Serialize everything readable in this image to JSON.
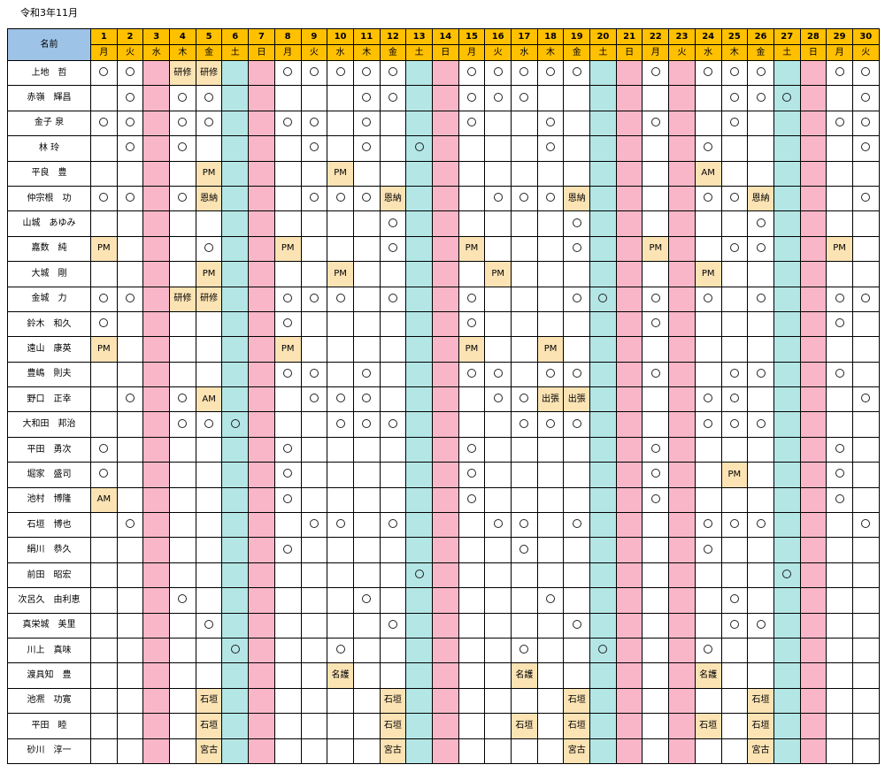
{
  "title": "令和3年11月",
  "header": {
    "name_label": "名前",
    "days": [
      "1",
      "2",
      "3",
      "4",
      "5",
      "6",
      "7",
      "8",
      "9",
      "10",
      "11",
      "12",
      "13",
      "14",
      "15",
      "16",
      "17",
      "18",
      "19",
      "20",
      "21",
      "22",
      "23",
      "24",
      "25",
      "26",
      "27",
      "28",
      "29",
      "30"
    ],
    "weekdays": [
      "月",
      "火",
      "水",
      "木",
      "金",
      "土",
      "日",
      "月",
      "火",
      "水",
      "木",
      "金",
      "土",
      "日",
      "月",
      "火",
      "水",
      "木",
      "金",
      "土",
      "日",
      "月",
      "火",
      "水",
      "木",
      "金",
      "土",
      "日",
      "月",
      "火"
    ]
  },
  "legend": {
    "circle_symbol": "○"
  },
  "colors": {
    "header": "#ffc000",
    "name_header": "#9dc3e6",
    "saturday": "#b4e6e6",
    "sunday_holiday": "#f8b6c8",
    "highlight": "#fbe3b4"
  },
  "column_types": [
    "",
    "",
    "off",
    "",
    "",
    "sat",
    "off",
    "",
    "",
    "",
    "",
    "",
    "sat",
    "off",
    "",
    "",
    "",
    "",
    "",
    "sat",
    "off",
    "",
    "off",
    "",
    "",
    "",
    "sat",
    "off",
    "",
    ""
  ],
  "rows": [
    {
      "name": "上地　哲",
      "cells": [
        "○",
        "○",
        "",
        "研修",
        "研修",
        "",
        "",
        "○",
        "○",
        "○",
        "○",
        "○",
        "",
        "",
        "○",
        "○",
        "○",
        "○",
        "○",
        "",
        "",
        "○",
        "",
        "○",
        "○",
        "○",
        "",
        "",
        "○",
        "○"
      ]
    },
    {
      "name": "赤嶺　輝昌",
      "cells": [
        "",
        "○",
        "",
        "○",
        "○",
        "",
        "",
        "",
        "",
        "",
        "○",
        "○",
        "",
        "",
        "○",
        "○",
        "○",
        "",
        "",
        "",
        "",
        "",
        "",
        "",
        "○",
        "○",
        "○",
        "",
        "",
        "○"
      ]
    },
    {
      "name": "金子 泉",
      "cells": [
        "○",
        "○",
        "",
        "○",
        "○",
        "",
        "",
        "○",
        "○",
        "",
        "○",
        "",
        "",
        "",
        "○",
        "",
        "",
        "○",
        "",
        "",
        "",
        "○",
        "",
        "",
        "○",
        "",
        "",
        "",
        "○",
        "○"
      ]
    },
    {
      "name": "林 玲",
      "cells": [
        "",
        "○",
        "",
        "○",
        "",
        "",
        "",
        "",
        "○",
        "",
        "○",
        "",
        "○",
        "",
        "",
        "",
        "",
        "○",
        "",
        "",
        "",
        "",
        "",
        "○",
        "",
        "",
        "",
        "",
        "",
        "○"
      ]
    },
    {
      "name": "平良　豊",
      "cells": [
        "",
        "",
        "",
        "",
        "PM",
        "",
        "",
        "",
        "",
        "PM",
        "",
        "",
        "",
        "",
        "",
        "",
        "",
        "",
        "",
        "",
        "",
        "",
        "",
        "AM",
        "",
        "",
        "",
        "",
        "",
        ""
      ]
    },
    {
      "name": "仲宗根　功",
      "cells": [
        "○",
        "○",
        "",
        "○",
        "恩納",
        "",
        "",
        "",
        "○",
        "○",
        "○",
        "恩納",
        "",
        "",
        "",
        "○",
        "○",
        "○",
        "恩納",
        "",
        "",
        "",
        "",
        "○",
        "○",
        "恩納",
        "",
        "",
        "",
        "○"
      ]
    },
    {
      "name": "山城　あゆみ",
      "cells": [
        "",
        "",
        "",
        "",
        "",
        "",
        "",
        "",
        "",
        "",
        "",
        "○",
        "",
        "",
        "",
        "",
        "",
        "",
        "○",
        "",
        "",
        "",
        "",
        "",
        "",
        "○",
        "",
        "",
        "",
        ""
      ]
    },
    {
      "name": "嘉数　純",
      "cells": [
        "PM",
        "",
        "",
        "",
        "○",
        "",
        "",
        "PM",
        "",
        "",
        "",
        "○",
        "",
        "",
        "PM",
        "",
        "",
        "",
        "○",
        "",
        "",
        "PM",
        "",
        "",
        "○",
        "○",
        "",
        "",
        "PM",
        ""
      ]
    },
    {
      "name": "大城　剛",
      "cells": [
        "",
        "",
        "",
        "",
        "PM",
        "",
        "",
        "",
        "",
        "PM",
        "",
        "",
        "",
        "",
        "",
        "PM",
        "",
        "",
        "",
        "",
        "",
        "",
        "",
        "PM",
        "",
        "",
        "",
        "",
        "",
        ""
      ]
    },
    {
      "name": "金城　力",
      "cells": [
        "○",
        "○",
        "",
        "研修",
        "研修",
        "",
        "",
        "○",
        "○",
        "○",
        "",
        "○",
        "",
        "",
        "○",
        "",
        "",
        "",
        "○",
        "○",
        "",
        "○",
        "",
        "○",
        "",
        "○",
        "",
        "",
        "○",
        "○"
      ]
    },
    {
      "name": "鈴木　和久",
      "cells": [
        "○",
        "",
        "",
        "",
        "",
        "",
        "",
        "○",
        "",
        "",
        "",
        "",
        "",
        "",
        "○",
        "",
        "",
        "",
        "",
        "",
        "",
        "○",
        "",
        "",
        "",
        "",
        "",
        "",
        "○",
        ""
      ]
    },
    {
      "name": "遠山　康英",
      "cells": [
        "PM",
        "",
        "",
        "",
        "",
        "",
        "",
        "PM",
        "",
        "",
        "",
        "",
        "",
        "",
        "PM",
        "",
        "",
        "PM",
        "",
        "",
        "",
        "",
        "",
        "",
        "",
        "",
        "",
        "",
        "",
        ""
      ]
    },
    {
      "name": "豊嶋　則夫",
      "cells": [
        "",
        "",
        "",
        "",
        "",
        "",
        "",
        "○",
        "○",
        "",
        "○",
        "",
        "",
        "",
        "○",
        "○",
        "",
        "○",
        "○",
        "",
        "",
        "○",
        "",
        "",
        "○",
        "○",
        "",
        "",
        "○",
        ""
      ]
    },
    {
      "name": "野口　正幸",
      "cells": [
        "",
        "○",
        "",
        "○",
        "AM",
        "",
        "",
        "",
        "○",
        "○",
        "○",
        "",
        "",
        "",
        "",
        "○",
        "○",
        "出張",
        "出張",
        "",
        "",
        "",
        "",
        "○",
        "○",
        "",
        "",
        "",
        "",
        "○"
      ]
    },
    {
      "name": "大和田　邦治",
      "cells": [
        "",
        "",
        "",
        "○",
        "○",
        "○",
        "",
        "",
        "",
        "○",
        "○",
        "○",
        "",
        "",
        "",
        "",
        "○",
        "○",
        "○",
        "",
        "",
        "",
        "",
        "○",
        "○",
        "○",
        "",
        "",
        "",
        ""
      ]
    },
    {
      "name": "平田　勇次",
      "cells": [
        "○",
        "",
        "",
        "",
        "",
        "",
        "",
        "○",
        "",
        "",
        "",
        "",
        "",
        "",
        "○",
        "",
        "",
        "",
        "",
        "",
        "",
        "○",
        "",
        "",
        "",
        "",
        "",
        "",
        "○",
        ""
      ]
    },
    {
      "name": "堀家　盛司",
      "cells": [
        "○",
        "",
        "",
        "",
        "",
        "",
        "",
        "○",
        "",
        "",
        "",
        "",
        "",
        "",
        "○",
        "",
        "",
        "",
        "",
        "",
        "",
        "○",
        "",
        "",
        "PM",
        "",
        "",
        "",
        "○",
        ""
      ]
    },
    {
      "name": "池村　博隆",
      "cells": [
        "AM",
        "",
        "",
        "",
        "",
        "",
        "",
        "○",
        "",
        "",
        "",
        "",
        "",
        "",
        "○",
        "",
        "",
        "",
        "",
        "",
        "",
        "○",
        "",
        "",
        "",
        "",
        "",
        "",
        "○",
        ""
      ]
    },
    {
      "name": "石垣　博也",
      "cells": [
        "",
        "○",
        "",
        "",
        "",
        "",
        "",
        "",
        "○",
        "○",
        "",
        "○",
        "",
        "",
        "",
        "○",
        "○",
        "",
        "○",
        "",
        "",
        "",
        "",
        "○",
        "○",
        "○",
        "",
        "",
        "",
        "○"
      ]
    },
    {
      "name": "絹川　恭久",
      "cells": [
        "",
        "",
        "",
        "",
        "",
        "",
        "",
        "○",
        "",
        "",
        "",
        "",
        "",
        "",
        "",
        "",
        "○",
        "",
        "",
        "",
        "",
        "",
        "",
        "○",
        "",
        "",
        "",
        "",
        "",
        ""
      ]
    },
    {
      "name": "前田　昭宏",
      "cells": [
        "",
        "",
        "",
        "",
        "",
        "",
        "",
        "",
        "",
        "",
        "",
        "",
        "○",
        "",
        "",
        "",
        "",
        "",
        "",
        "",
        "",
        "",
        "",
        "",
        "",
        "",
        "○",
        "",
        "",
        ""
      ]
    },
    {
      "name": "次呂久　由利恵",
      "cells": [
        "",
        "",
        "",
        "○",
        "",
        "",
        "",
        "",
        "",
        "",
        "○",
        "",
        "",
        "",
        "",
        "",
        "",
        "○",
        "",
        "",
        "",
        "",
        "",
        "",
        "○",
        "",
        "",
        "",
        "",
        ""
      ]
    },
    {
      "name": "真栄城　美里",
      "cells": [
        "",
        "",
        "",
        "",
        "○",
        "",
        "",
        "",
        "",
        "",
        "",
        "○",
        "",
        "",
        "",
        "",
        "",
        "",
        "○",
        "",
        "",
        "",
        "",
        "",
        "○",
        "○",
        "",
        "",
        "",
        ""
      ]
    },
    {
      "name": "川上　真味",
      "cells": [
        "",
        "",
        "",
        "",
        "",
        "○",
        "",
        "",
        "",
        "○",
        "",
        "",
        "",
        "",
        "",
        "",
        "○",
        "",
        "",
        "○",
        "",
        "",
        "",
        "○",
        "",
        "",
        "",
        "",
        "",
        ""
      ]
    },
    {
      "name": "渡具知　豊",
      "cells": [
        "",
        "",
        "",
        "",
        "",
        "",
        "",
        "",
        "",
        "名護",
        "",
        "",
        "",
        "",
        "",
        "",
        "名護",
        "",
        "",
        "",
        "",
        "",
        "",
        "名護",
        "",
        "",
        "",
        "",
        "",
        ""
      ]
    },
    {
      "name": "池凞　功寛",
      "cells": [
        "",
        "",
        "",
        "",
        "石垣",
        "",
        "",
        "",
        "",
        "",
        "",
        "石垣",
        "",
        "",
        "",
        "",
        "",
        "",
        "石垣",
        "",
        "",
        "",
        "",
        "",
        "",
        "石垣",
        "",
        "",
        "",
        ""
      ]
    },
    {
      "name": "平田　睦",
      "cells": [
        "",
        "",
        "",
        "",
        "石垣",
        "",
        "",
        "",
        "",
        "",
        "",
        "石垣",
        "",
        "",
        "",
        "",
        "石垣",
        "",
        "石垣",
        "",
        "",
        "",
        "",
        "石垣",
        "",
        "石垣",
        "",
        "",
        "",
        ""
      ]
    },
    {
      "name": "砂川　淳一",
      "cells": [
        "",
        "",
        "",
        "",
        "宮古",
        "",
        "",
        "",
        "",
        "",
        "",
        "宮古",
        "",
        "",
        "",
        "",
        "",
        "",
        "宮古",
        "",
        "",
        "",
        "",
        "",
        "",
        "宮古",
        "",
        "",
        "",
        ""
      ]
    }
  ]
}
